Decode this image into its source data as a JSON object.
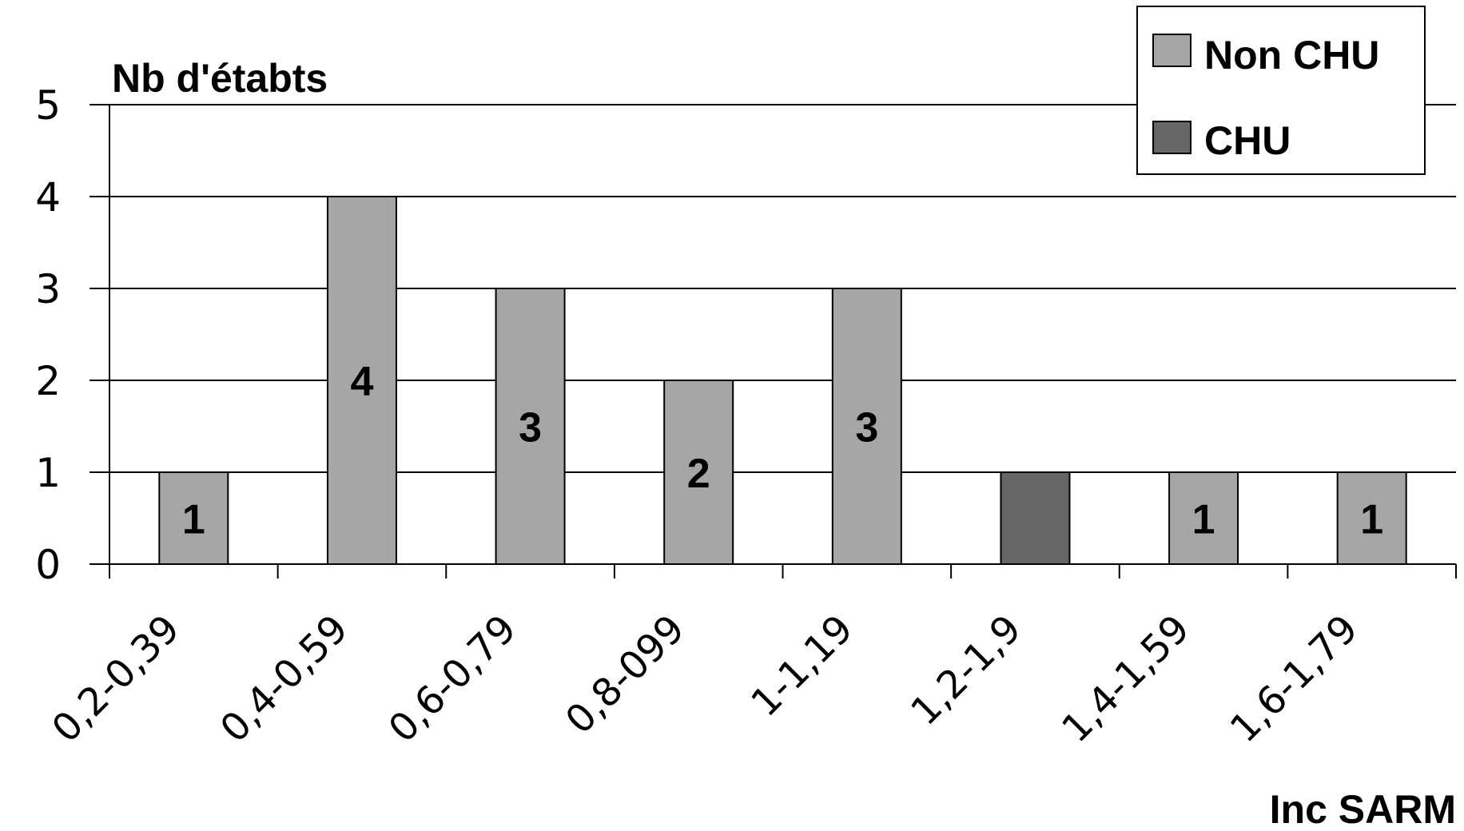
{
  "chart_data": {
    "type": "bar",
    "title": "",
    "ylabel": "Nb d'établissements",
    "ylabel_display": "Nb d'étabts",
    "xlabel": "Inc SARM",
    "ylim": [
      0,
      5
    ],
    "yticks": [
      "0",
      "1",
      "2",
      "3",
      "4",
      "5"
    ],
    "grid": true,
    "legend_position": "top-right",
    "categories": [
      "0,2-0,39",
      "0,4-0,59",
      "0,6-0,79",
      "0,8-099",
      "1-1,19",
      "1,2-1,9",
      "1,4-1,59",
      "1,6-1,79"
    ],
    "series": [
      {
        "name": "Non CHU",
        "color": "#a6a6a6",
        "values": [
          1,
          4,
          3,
          2,
          3,
          0,
          1,
          1
        ]
      },
      {
        "name": "CHU",
        "color": "#666666",
        "values": [
          0,
          0,
          0,
          0,
          0,
          1,
          0,
          0
        ]
      }
    ],
    "data_labels": [
      "1",
      "4",
      "3",
      "2",
      "3",
      "",
      "1",
      "1"
    ]
  }
}
